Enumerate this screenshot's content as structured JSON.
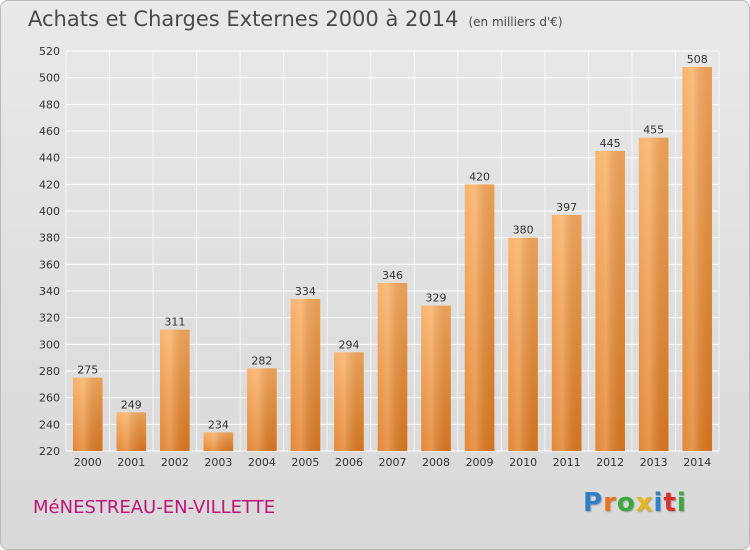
{
  "title": "Achats et Charges Externes 2000 à 2014",
  "unit": "(en milliers d'€)",
  "commune": "MéNESTREAU-EN-VILLETTE",
  "logo": {
    "letters": [
      "P",
      "r",
      "o",
      "x",
      "i",
      "t",
      "i"
    ],
    "colors": [
      "#2e7fc8",
      "#e8731d",
      "#3aa83a",
      "#e8b51d",
      "#2e7fc8",
      "#d9302c",
      "#3aa83a"
    ]
  },
  "colors": {
    "bar_light": "#f9ab5c",
    "bar_dark": "#e07a1f",
    "grid": "#ffffff",
    "axis_text": "#333333",
    "commune": "#c0147a"
  },
  "chart_data": {
    "type": "bar",
    "categories": [
      "2000",
      "2001",
      "2002",
      "2003",
      "2004",
      "2005",
      "2006",
      "2007",
      "2008",
      "2009",
      "2010",
      "2011",
      "2012",
      "2013",
      "2014"
    ],
    "values": [
      275,
      249,
      311,
      234,
      282,
      334,
      294,
      346,
      329,
      420,
      380,
      397,
      445,
      455,
      508
    ],
    "title": "Achats et Charges Externes 2000 à 2014",
    "xlabel": "",
    "ylabel": "",
    "ylim": [
      220,
      520
    ],
    "yticks": [
      220,
      240,
      260,
      280,
      300,
      320,
      340,
      360,
      380,
      400,
      420,
      440,
      460,
      480,
      500,
      520
    ],
    "grid": true,
    "data_labels": true
  }
}
